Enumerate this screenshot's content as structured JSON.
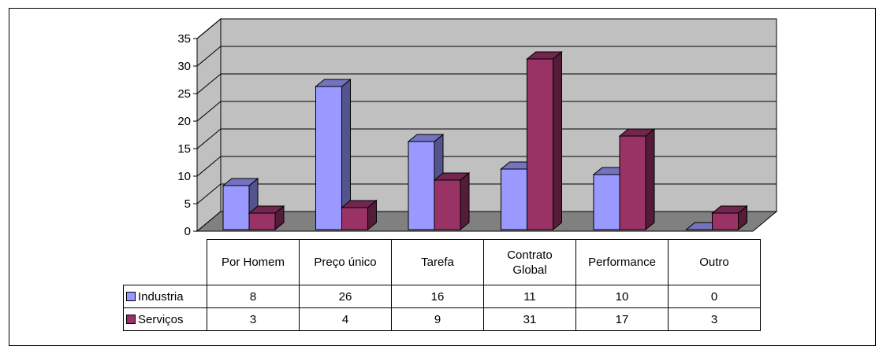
{
  "chart_data": {
    "type": "bar",
    "categories": [
      "Por Homem",
      "Preço único",
      "Tarefa",
      "Contrato Global",
      "Performance",
      "Outro"
    ],
    "category_lines": [
      [
        "Por Homem"
      ],
      [
        "Preço único"
      ],
      [
        "Tarefa"
      ],
      [
        "Contrato",
        "Global"
      ],
      [
        "Performance"
      ],
      [
        "Outro"
      ]
    ],
    "series": [
      {
        "name": "Industria",
        "values": [
          8,
          26,
          16,
          11,
          10,
          0
        ],
        "color": "#9999FF"
      },
      {
        "name": "Serviços",
        "values": [
          3,
          4,
          9,
          31,
          17,
          3
        ],
        "color": "#993366"
      }
    ],
    "ylim": [
      0,
      35
    ],
    "yticks": [
      "0",
      "5",
      "10",
      "15",
      "20",
      "25",
      "30",
      "35"
    ],
    "grid": true,
    "three_d": true,
    "data_table": true,
    "wall_color": "#C0C0C0",
    "floor_color": "#808080"
  }
}
